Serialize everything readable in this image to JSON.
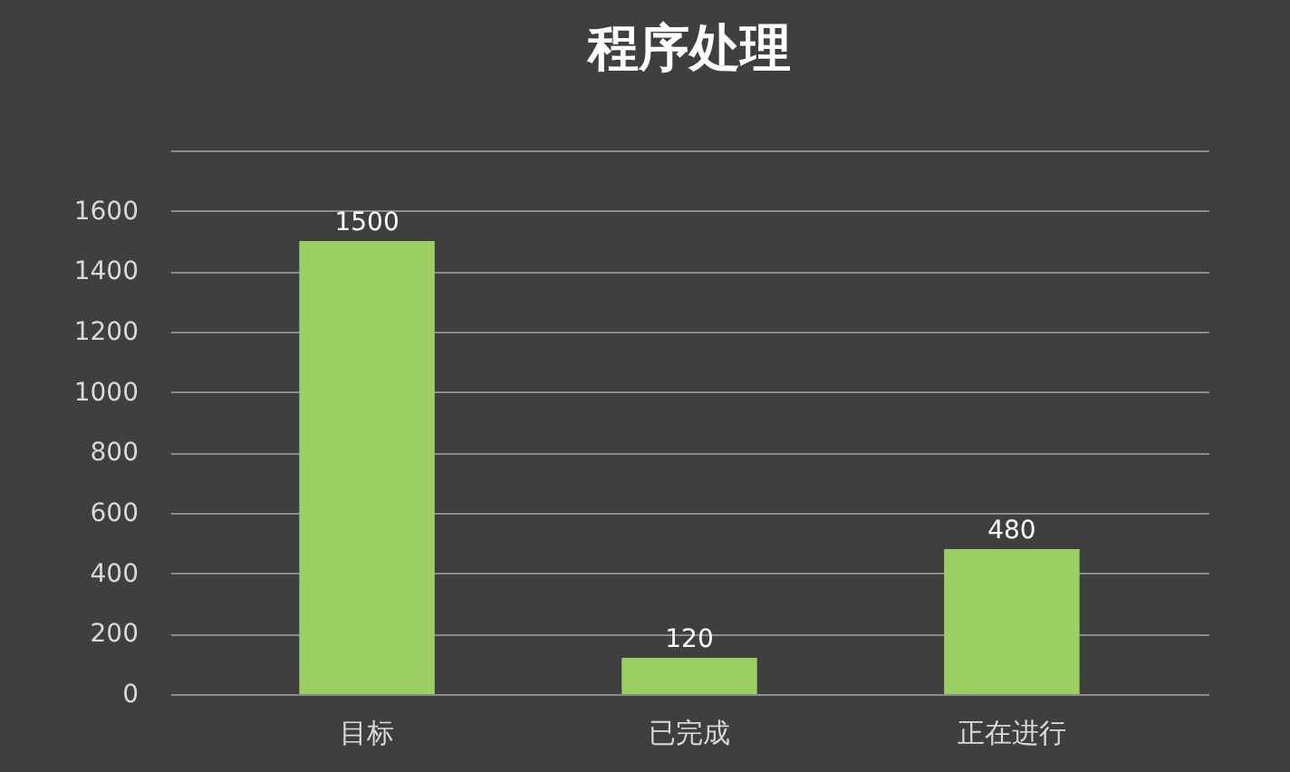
{
  "chart_data": {
    "type": "bar",
    "title": "程序处理",
    "categories": [
      "目标",
      "已完成",
      "正在进行"
    ],
    "values": [
      1500,
      120,
      480
    ],
    "color": "#9ccf62",
    "ylim": [
      0,
      1800
    ],
    "yticks": [
      0,
      200,
      400,
      600,
      800,
      1000,
      1200,
      1400,
      1600,
      {
        "value": 1800,
        "label": null
      }
    ],
    "grid": "y",
    "data_labels": true
  }
}
